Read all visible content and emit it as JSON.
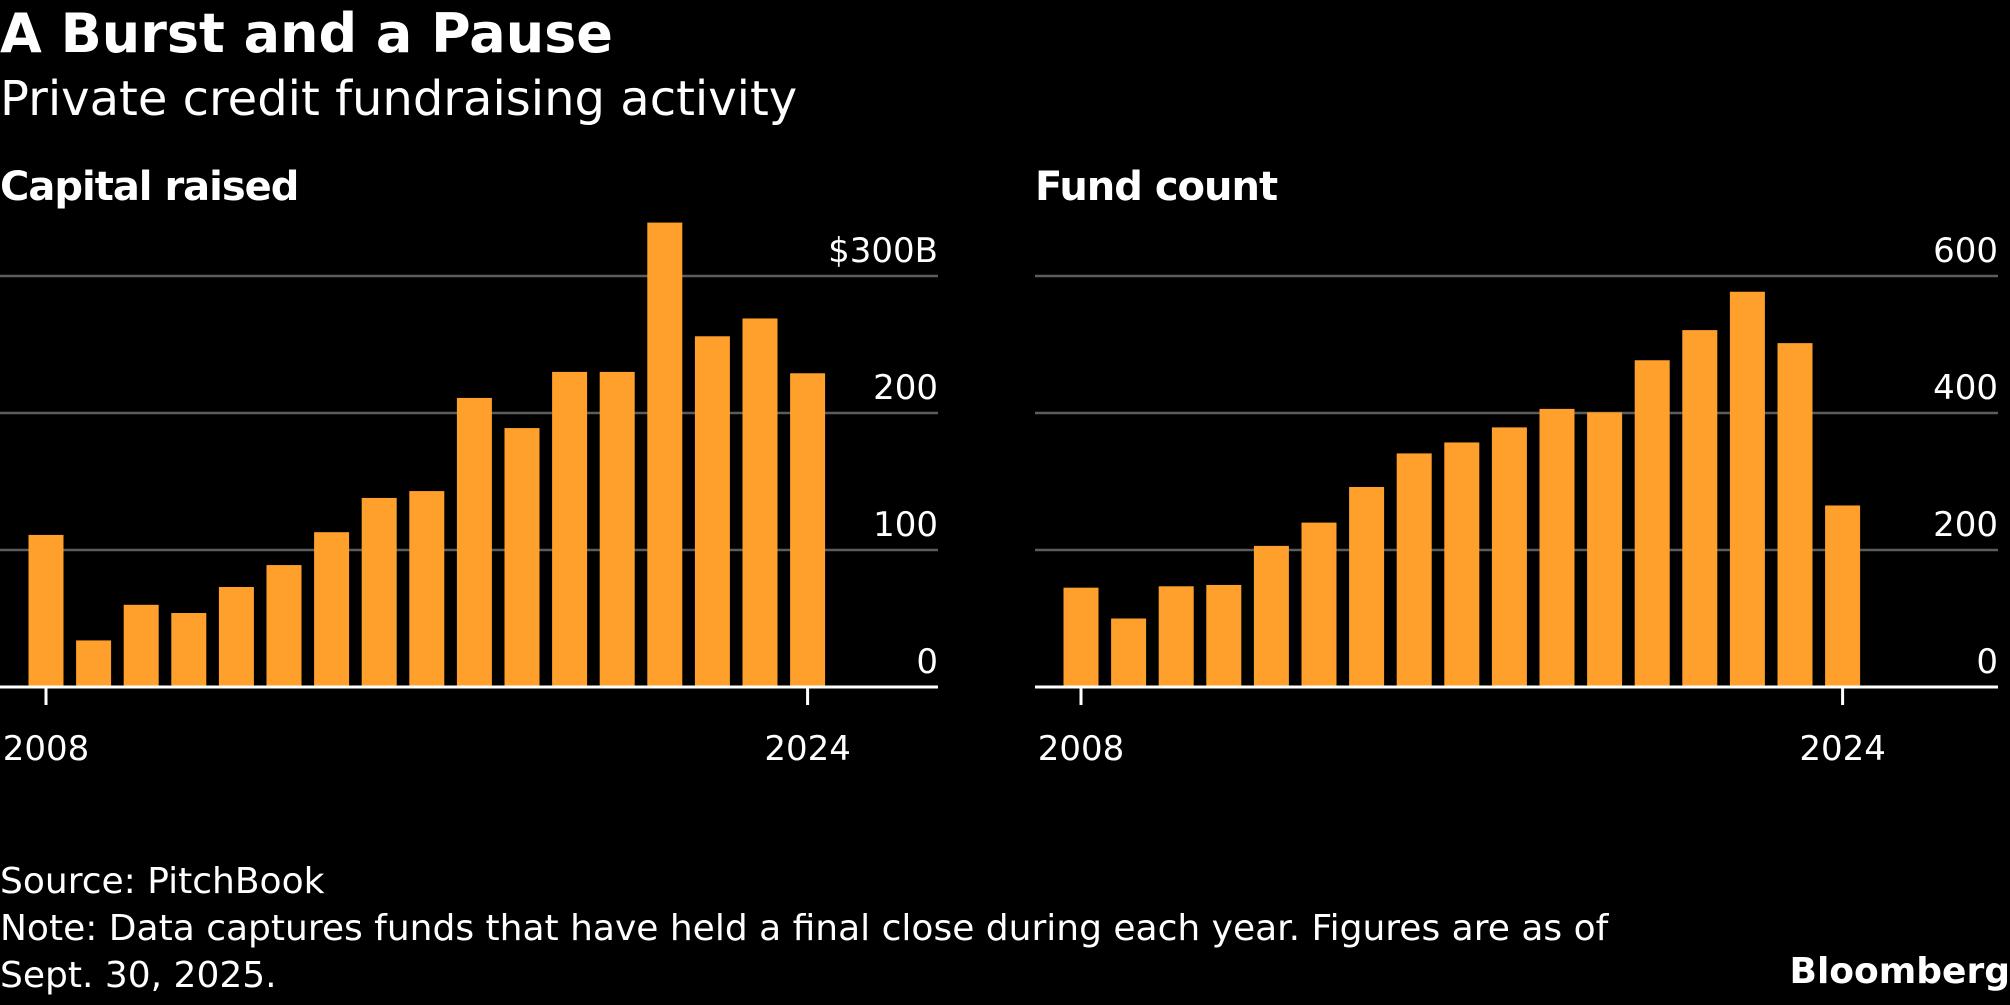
{
  "header": {
    "title": "A Burst and a Pause",
    "subtitle": "Private credit fundraising activity"
  },
  "footer": {
    "source": "Source: PitchBook",
    "note_line1": "Note: Data captures funds that have held a final close during each year. Figures are as of",
    "note_line2": "Sept. 30, 2025.",
    "brand": "Bloomberg"
  },
  "colors": {
    "background": "#000000",
    "bar": "#FFA02D",
    "grid": "#5c5c5c",
    "axis": "#ffffff",
    "text": "#ffffff"
  },
  "chart_data": [
    {
      "type": "bar",
      "title": "Capital raised",
      "x": [
        2008,
        2009,
        2010,
        2011,
        2012,
        2013,
        2014,
        2015,
        2016,
        2017,
        2018,
        2019,
        2020,
        2021,
        2022,
        2023,
        2024
      ],
      "values": [
        111,
        34,
        60,
        54,
        73,
        89,
        113,
        138,
        143,
        211,
        189,
        230,
        230,
        339,
        256,
        269,
        229
      ],
      "ylim": [
        0,
        300
      ],
      "yticks": [
        0,
        100,
        200,
        300
      ],
      "ytick_labels": [
        "0",
        "100",
        "200",
        "$300B"
      ],
      "xtick_values": [
        2008,
        2024
      ],
      "xtick_labels": [
        "2008",
        "2024"
      ],
      "xlabel": "",
      "ylabel": "",
      "grid": true,
      "ytick_position": "right"
    },
    {
      "type": "bar",
      "title": "Fund count",
      "x": [
        2008,
        2009,
        2010,
        2011,
        2012,
        2013,
        2014,
        2015,
        2016,
        2017,
        2018,
        2019,
        2020,
        2021,
        2022,
        2023,
        2024
      ],
      "values": [
        145,
        100,
        147,
        149,
        206,
        240,
        292,
        341,
        357,
        379,
        406,
        401,
        477,
        521,
        577,
        502,
        265
      ],
      "ylim": [
        0,
        600
      ],
      "yticks": [
        0,
        200,
        400,
        600
      ],
      "ytick_labels": [
        "0",
        "200",
        "400",
        "600"
      ],
      "xtick_values": [
        2008,
        2024
      ],
      "xtick_labels": [
        "2008",
        "2024"
      ],
      "xlabel": "",
      "ylabel": "",
      "grid": true,
      "ytick_position": "right"
    }
  ]
}
